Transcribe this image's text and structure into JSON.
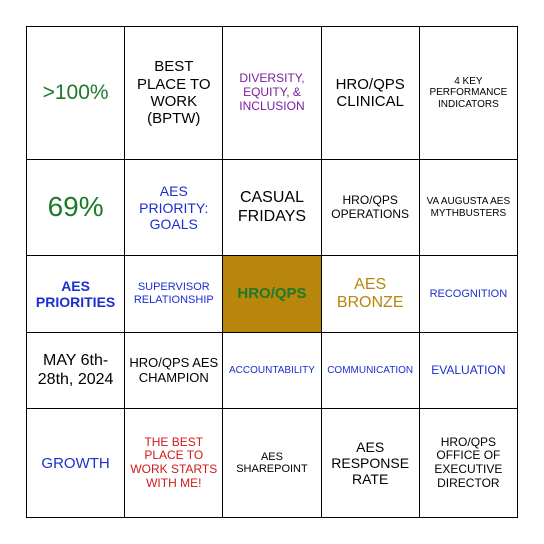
{
  "type": "table",
  "grid": "5x5",
  "background_color": "#ffffff",
  "border_color": "#000000",
  "font_family": "Arial",
  "cells": [
    [
      {
        "text": ">100%",
        "color": "#1e7a2a",
        "fontsize": 21,
        "weight": "normal",
        "bg": "#ffffff"
      },
      {
        "text": "BEST PLACE TO WORK (BPTW)",
        "color": "#000000",
        "fontsize": 15,
        "weight": "normal",
        "bg": "#ffffff"
      },
      {
        "text": "DIVERSITY, EQUITY, & INCLUSION",
        "color": "#7a1ea0",
        "fontsize": 12,
        "weight": "normal",
        "bg": "#ffffff"
      },
      {
        "text": "HRO/QPS CLINICAL",
        "color": "#000000",
        "fontsize": 15,
        "weight": "normal",
        "bg": "#ffffff"
      },
      {
        "text": "4 KEY PERFORMANCE INDICATORS",
        "color": "#000000",
        "fontsize": 10,
        "weight": "normal",
        "bg": "#ffffff"
      }
    ],
    [
      {
        "text": "69%",
        "color": "#1e7a2a",
        "fontsize": 28,
        "weight": "normal",
        "bg": "#ffffff"
      },
      {
        "text": "AES PRIORITY: GOALS",
        "color": "#1a2fd0",
        "fontsize": 14,
        "weight": "normal",
        "bg": "#ffffff"
      },
      {
        "text": "CASUAL FRIDAYS",
        "color": "#000000",
        "fontsize": 16,
        "weight": "normal",
        "bg": "#ffffff"
      },
      {
        "text": "HRO/QPS OPERATIONS",
        "color": "#000000",
        "fontsize": 12,
        "weight": "normal",
        "bg": "#ffffff"
      },
      {
        "text": "VA AUGUSTA AES MYTHBUSTERS",
        "color": "#000000",
        "fontsize": 10,
        "weight": "normal",
        "bg": "#ffffff"
      }
    ],
    [
      {
        "text": "AES PRIORITIES",
        "color": "#1a2fd0",
        "fontsize": 14,
        "weight": "bold",
        "bg": "#ffffff"
      },
      {
        "text": "SUPERVISOR RELATIONSHIP",
        "color": "#1a2fd0",
        "fontsize": 11,
        "weight": "normal",
        "bg": "#ffffff"
      },
      {
        "text": "HRO/QPS",
        "color": "#1e7a2a",
        "fontsize": 15,
        "weight": "bold",
        "bg": "#b8860b"
      },
      {
        "text": "AES BRONZE",
        "color": "#b8860b",
        "fontsize": 16,
        "weight": "normal",
        "bg": "#ffffff"
      },
      {
        "text": "RECOGNITION",
        "color": "#1a2fd0",
        "fontsize": 11,
        "weight": "normal",
        "bg": "#ffffff"
      }
    ],
    [
      {
        "text": "MAY 6th-28th, 2024",
        "color": "#000000",
        "fontsize": 16,
        "weight": "normal",
        "bg": "#ffffff"
      },
      {
        "text": "HRO/QPS AES CHAMPION",
        "color": "#000000",
        "fontsize": 13,
        "weight": "normal",
        "bg": "#ffffff"
      },
      {
        "text": "ACCOUNTABILITY",
        "color": "#1a2fd0",
        "fontsize": 10,
        "weight": "normal",
        "bg": "#ffffff"
      },
      {
        "text": "COMMUNICATION",
        "color": "#1a2fd0",
        "fontsize": 10,
        "weight": "normal",
        "bg": "#ffffff"
      },
      {
        "text": "EVALUATION",
        "color": "#1a2fd0",
        "fontsize": 12,
        "weight": "normal",
        "bg": "#ffffff"
      }
    ],
    [
      {
        "text": "GROWTH",
        "color": "#1a2fd0",
        "fontsize": 15,
        "weight": "normal",
        "bg": "#ffffff"
      },
      {
        "text": "THE BEST PLACE TO WORK STARTS WITH ME!",
        "color": "#d01a1a",
        "fontsize": 12,
        "weight": "normal",
        "bg": "#ffffff"
      },
      {
        "text": "AES SHAREPOINT",
        "color": "#000000",
        "fontsize": 11,
        "weight": "normal",
        "bg": "#ffffff"
      },
      {
        "text": "AES RESPONSE RATE",
        "color": "#000000",
        "fontsize": 14,
        "weight": "normal",
        "bg": "#ffffff"
      },
      {
        "text": "HRO/QPS OFFICE OF EXECUTIVE DIRECTOR",
        "color": "#000000",
        "fontsize": 12,
        "weight": "normal",
        "bg": "#ffffff"
      }
    ]
  ]
}
